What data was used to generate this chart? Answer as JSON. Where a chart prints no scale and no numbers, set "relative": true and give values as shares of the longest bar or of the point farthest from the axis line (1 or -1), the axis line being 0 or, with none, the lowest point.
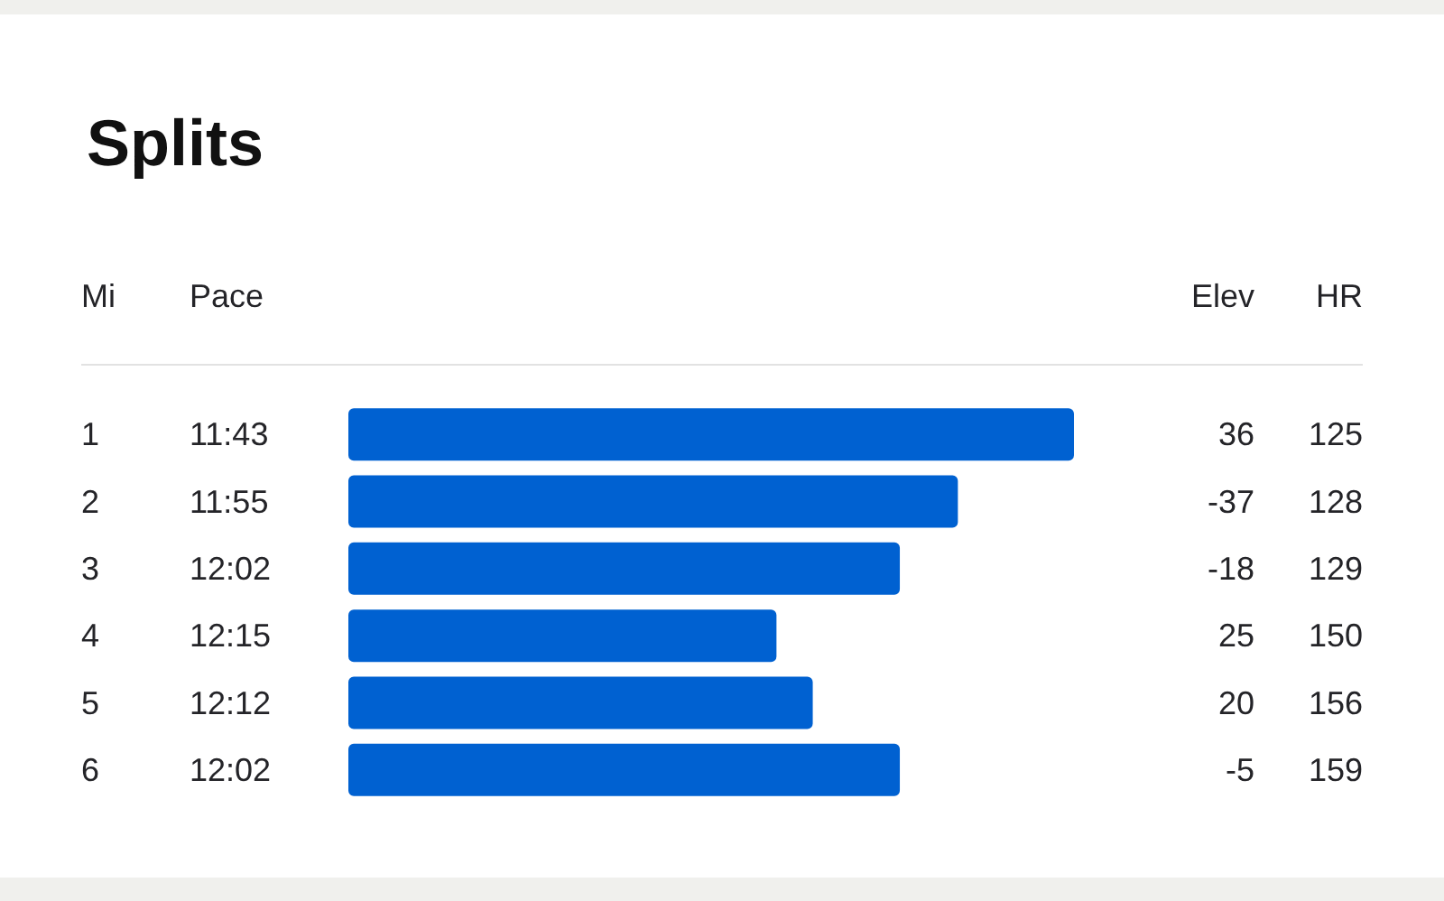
{
  "chart_data": {
    "type": "bar",
    "orientation": "horizontal",
    "relative": true,
    "title": "Splits",
    "categories": [
      "1",
      "2",
      "3",
      "4",
      "5",
      "6"
    ],
    "values": [
      1,
      0.84,
      0.76,
      0.59,
      0.64,
      0.76
    ],
    "color": "#0061d1",
    "annotations": [
      "Mi",
      "Pace",
      "Elev",
      "HR",
      "11:43",
      "36",
      "125",
      "11:55",
      "-37",
      "128",
      "12:02",
      "-18",
      "129",
      "12:15",
      "25",
      "150",
      "12:12",
      "20",
      "156",
      "12:02",
      "-5",
      "159"
    ]
  }
}
